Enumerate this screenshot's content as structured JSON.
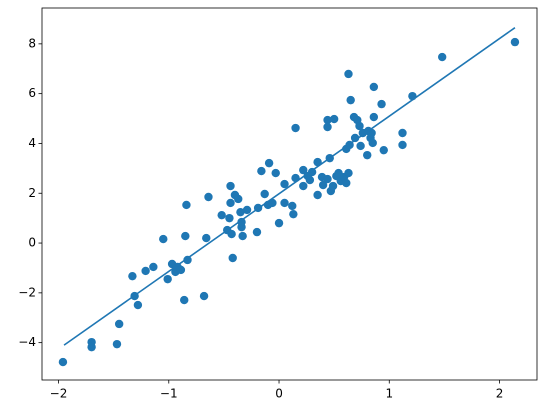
{
  "chart_data": {
    "type": "scatter",
    "color": "#1f77b4",
    "x": [
      -1.96,
      -1.7,
      -1.7,
      -1.47,
      -1.45,
      -1.33,
      -1.31,
      -1.28,
      -1.21,
      -1.14,
      -1.05,
      -1.01,
      -0.97,
      -0.94,
      -0.92,
      -0.89,
      -0.86,
      -0.85,
      -0.84,
      -0.83,
      -0.68,
      -0.66,
      -0.64,
      -0.52,
      -0.47,
      -0.45,
      -0.44,
      -0.44,
      -0.43,
      -0.42,
      -0.4,
      -0.37,
      -0.35,
      -0.34,
      -0.33,
      -0.34,
      -0.29,
      -0.2,
      -0.19,
      -0.16,
      -0.13,
      -0.1,
      -0.09,
      -0.06,
      -0.03,
      0.0,
      0.05,
      0.05,
      0.12,
      0.13,
      0.15,
      0.15,
      0.22,
      0.22,
      0.26,
      0.28,
      0.3,
      0.35,
      0.35,
      0.39,
      0.4,
      0.44,
      0.44,
      0.44,
      0.46,
      0.47,
      0.49,
      0.5,
      0.52,
      0.54,
      0.56,
      0.59,
      0.61,
      0.61,
      0.63,
      0.63,
      0.64,
      0.65,
      0.68,
      0.69,
      0.71,
      0.73,
      0.74,
      0.76,
      0.81,
      0.8,
      0.83,
      0.84,
      0.85,
      0.86,
      0.86,
      0.93,
      0.95,
      1.12,
      1.12,
      1.21,
      1.48,
      2.14
    ],
    "y": [
      -4.78,
      -3.98,
      -4.18,
      -4.06,
      -3.25,
      -1.33,
      -2.13,
      -2.49,
      -1.12,
      -0.96,
      0.16,
      -1.45,
      -0.84,
      -1.16,
      -0.96,
      -1.08,
      -2.29,
      0.28,
      1.53,
      -0.68,
      -2.13,
      0.2,
      1.85,
      1.12,
      0.52,
      1.0,
      1.61,
      2.29,
      0.36,
      -0.6,
      1.93,
      1.77,
      1.24,
      0.64,
      0.28,
      0.84,
      1.33,
      0.44,
      1.41,
      2.89,
      1.97,
      1.53,
      3.21,
      1.61,
      2.81,
      0.8,
      1.61,
      2.37,
      1.49,
      1.16,
      4.62,
      2.61,
      2.29,
      2.93,
      2.69,
      2.53,
      2.85,
      3.25,
      1.93,
      2.65,
      2.33,
      2.57,
      4.94,
      4.66,
      3.41,
      2.09,
      2.29,
      4.98,
      2.69,
      2.81,
      2.49,
      2.65,
      2.41,
      3.78,
      6.79,
      2.81,
      3.94,
      5.74,
      5.06,
      4.22,
      4.94,
      4.7,
      3.9,
      4.42,
      4.5,
      3.53,
      4.22,
      4.42,
      4.02,
      6.27,
      5.06,
      5.58,
      3.73,
      4.42,
      3.94,
      5.9,
      7.47,
      8.07
    ],
    "line": {
      "x": [
        -1.95,
        2.14
      ],
      "y": [
        -4.1,
        8.65
      ]
    },
    "xlim": [
      -2.15,
      2.34
    ],
    "ylim": [
      -5.5,
      9.44
    ],
    "xticks": [
      {
        "value": -2,
        "label": "−2"
      },
      {
        "value": -1,
        "label": "−1"
      },
      0,
      1,
      2
    ],
    "yticks": [
      {
        "value": -4,
        "label": "−4"
      },
      {
        "value": -2,
        "label": "−2"
      },
      0,
      2,
      4,
      6,
      8
    ]
  }
}
